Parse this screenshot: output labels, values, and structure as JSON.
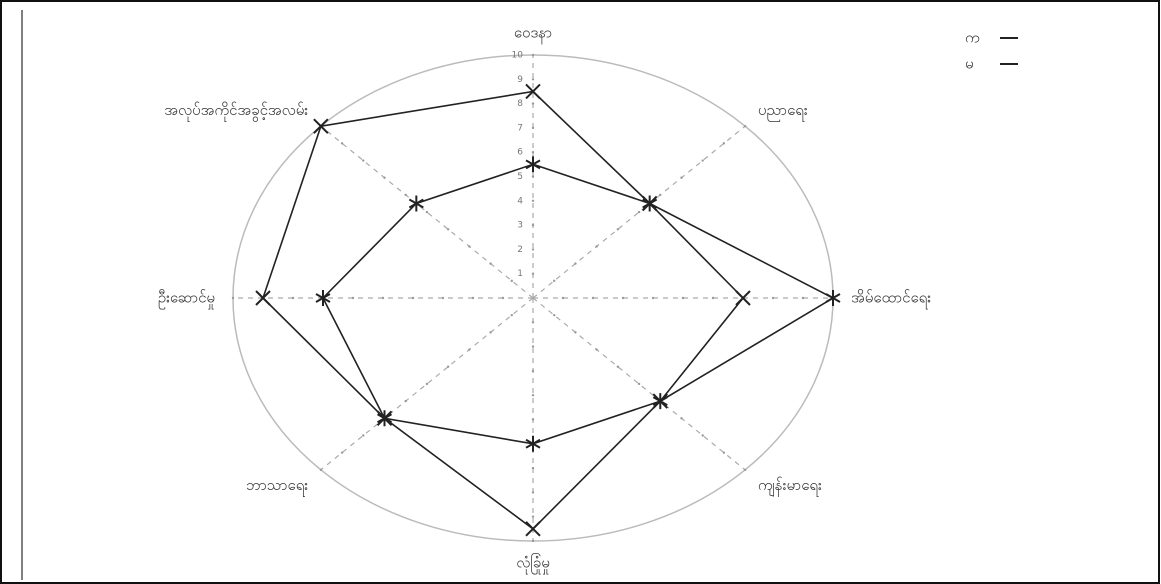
{
  "chart_data": {
    "type": "radar",
    "categories": [
      "ဝေဒနာ",
      "ပညာရေး",
      "အိမ်ထောင်ရေး",
      "ကျန်းမာရေး",
      "လုံခြုံမှု",
      "ဘာသာရေး",
      "ဦးဆောင်မှု",
      "အလုပ်အကိုင်အခွင့်အလမ်း"
    ],
    "series": [
      {
        "name": "က",
        "color": "#222222",
        "marker": "x",
        "values": [
          8.5,
          5.5,
          7,
          6,
          9.5,
          7,
          9,
          10
        ]
      },
      {
        "name": "မ",
        "color": "#222222",
        "marker": "star",
        "values": [
          5.5,
          5.5,
          10,
          6,
          6,
          7,
          7,
          5.5
        ]
      }
    ],
    "rlim": [
      0,
      10
    ],
    "rticks": [
      1,
      2,
      3,
      4,
      5,
      6,
      7,
      8,
      9,
      10
    ],
    "grid": true
  }
}
